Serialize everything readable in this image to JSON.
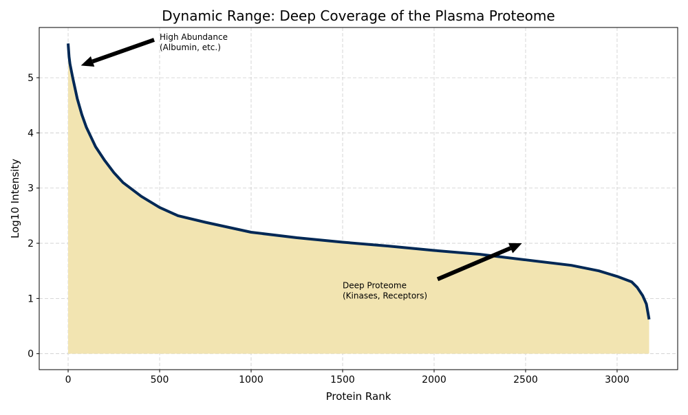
{
  "chart_data": {
    "type": "area",
    "title": "Dynamic Range: Deep Coverage of the Plasma Proteome",
    "xlabel": "Protein Rank",
    "ylabel": "Log10 Intensity",
    "xlim": [
      -158,
      3331
    ],
    "ylim": [
      -0.29,
      5.91
    ],
    "xticks": [
      0,
      500,
      1000,
      1500,
      2000,
      2500,
      3000
    ],
    "yticks": [
      0,
      1,
      2,
      3,
      4,
      5
    ],
    "grid": true,
    "colors": {
      "line": "#002855",
      "fill": "#f2e4b1",
      "grid": "#cccccc"
    },
    "series": [
      {
        "x": [
          0,
          5,
          10,
          25,
          50,
          75,
          100,
          150,
          200,
          250,
          300,
          400,
          500,
          600,
          750,
          1000,
          1250,
          1500,
          1750,
          2000,
          2250,
          2500,
          2750,
          2900,
          3000,
          3080,
          3110,
          3140,
          3160,
          3175
        ],
        "y": [
          5.62,
          5.38,
          5.25,
          5.0,
          4.62,
          4.33,
          4.1,
          3.75,
          3.5,
          3.28,
          3.1,
          2.85,
          2.65,
          2.5,
          2.38,
          2.2,
          2.1,
          2.02,
          1.95,
          1.87,
          1.8,
          1.7,
          1.6,
          1.5,
          1.4,
          1.3,
          1.2,
          1.05,
          0.9,
          0.62
        ]
      }
    ],
    "annotations": [
      {
        "text": [
          "High Abundance",
          "(Albumin, etc.)"
        ],
        "xytext": [
          500,
          5.5
        ],
        "xy": [
          70,
          5.22
        ]
      },
      {
        "text": [
          "Deep Proteome",
          "(Kinases, Receptors)"
        ],
        "xytext": [
          1500,
          1.0
        ],
        "xy": [
          2480,
          2.0
        ]
      }
    ]
  }
}
